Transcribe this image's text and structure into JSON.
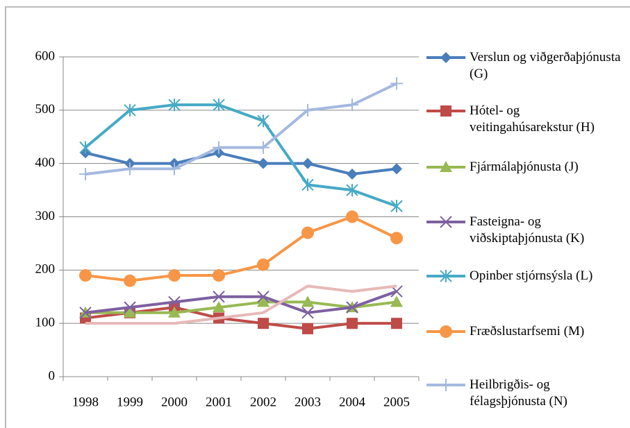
{
  "chart_data": {
    "type": "line",
    "categories": [
      "1998",
      "1999",
      "2000",
      "2001",
      "2002",
      "2003",
      "2004",
      "2005"
    ],
    "series": [
      {
        "name": "Verslun og viðgerðaþjónusta (G)",
        "color": "#4a7ebb",
        "marker": "diamond",
        "values": [
          420,
          400,
          400,
          420,
          400,
          400,
          380,
          390
        ]
      },
      {
        "name": "Hótel- og veitingahúsarekstur (H)",
        "color": "#be4b48",
        "marker": "square",
        "values": [
          110,
          120,
          130,
          110,
          100,
          90,
          100,
          100
        ]
      },
      {
        "name": "Fjármálaþjónusta (J)",
        "color": "#98b954",
        "marker": "triangle",
        "values": [
          120,
          120,
          120,
          130,
          140,
          140,
          130,
          140
        ]
      },
      {
        "name": "Fasteigna- og viðskiptaþjónusta (K)",
        "color": "#7d60a0",
        "marker": "x",
        "values": [
          120,
          130,
          140,
          150,
          150,
          120,
          130,
          160
        ]
      },
      {
        "name": "Opinber stjórnsýsla (L)",
        "color": "#46aac5",
        "marker": "star",
        "values": [
          430,
          500,
          510,
          510,
          480,
          360,
          350,
          320
        ]
      },
      {
        "name": "Fræðslustarfsemi (M)",
        "color": "#f79646",
        "marker": "circle",
        "values": [
          190,
          180,
          190,
          190,
          210,
          270,
          300,
          260
        ]
      },
      {
        "name": "Heilbrigðis- og félagsþjónusta (N)",
        "color": "#a5b9df",
        "marker": "plus",
        "values": [
          380,
          390,
          390,
          430,
          430,
          500,
          510,
          550
        ]
      },
      {
        "color": "#e6b9b8",
        "values": [
          100,
          100,
          100,
          110,
          120,
          170,
          160,
          170
        ]
      }
    ],
    "ylim": [
      0,
      600
    ],
    "yticks": [
      0,
      100,
      200,
      300,
      400,
      500,
      600
    ],
    "grid": true
  }
}
